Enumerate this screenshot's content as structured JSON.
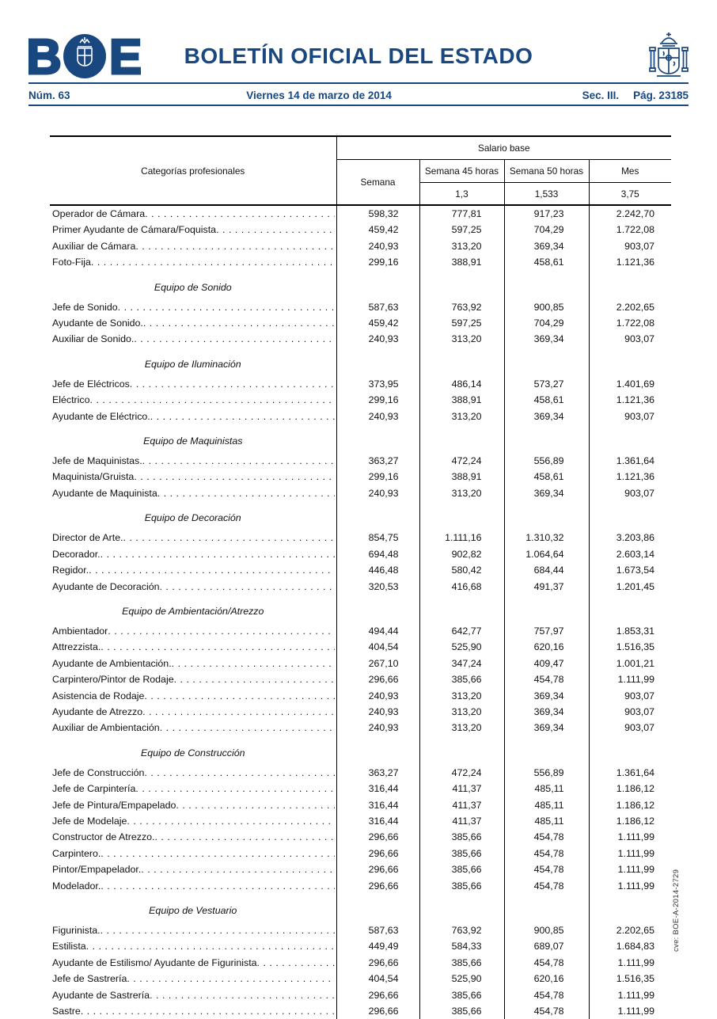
{
  "masthead": {
    "logo": "BOE",
    "title": "BOLETÍN OFICIAL DEL ESTADO",
    "issue": "Núm. 63",
    "date": "Viernes 14 de marzo de 2014",
    "section": "Sec. III.",
    "page_num": "Pág. 23185"
  },
  "cve": "cve: BOE-A-2014-2729",
  "colors": {
    "brand_blue": "#19477f",
    "text": "#111111",
    "border": "#000000"
  },
  "table": {
    "head": {
      "category": "Categorías profesionales",
      "salary_group": "Salario base",
      "week": "Semana",
      "week45": "Semana 45 horas",
      "week50": "Semana 50 horas",
      "month": "Mes",
      "mult45": "1,3",
      "mult50": "1,533",
      "mult_month": "3,75"
    },
    "sections": [
      {
        "title": null,
        "rows": [
          [
            "Operador de Cámara",
            "598,32",
            "777,81",
            "917,23",
            "2.242,70"
          ],
          [
            "Primer Ayudante de Cámara/Foquista",
            "459,42",
            "597,25",
            "704,29",
            "1.722,08"
          ],
          [
            "Auxiliar de Cámara",
            "240,93",
            "313,20",
            "369,34",
            "903,07"
          ],
          [
            "Foto-Fija",
            "299,16",
            "388,91",
            "458,61",
            "1.121,36"
          ]
        ]
      },
      {
        "title": "Equipo de Sonido",
        "rows": [
          [
            "Jefe de Sonido",
            "587,63",
            "763,92",
            "900,85",
            "2.202,65"
          ],
          [
            "Ayudante de Sonido.",
            "459,42",
            "597,25",
            "704,29",
            "1.722,08"
          ],
          [
            "Auxiliar de Sonido.",
            "240,93",
            "313,20",
            "369,34",
            "903,07"
          ]
        ]
      },
      {
        "title": "Equipo de Iluminación",
        "rows": [
          [
            "Jefe de Eléctricos",
            "373,95",
            "486,14",
            "573,27",
            "1.401,69"
          ],
          [
            "Eléctrico",
            "299,16",
            "388,91",
            "458,61",
            "1.121,36"
          ],
          [
            "Ayudante de Eléctrico.",
            "240,93",
            "313,20",
            "369,34",
            "903,07"
          ]
        ]
      },
      {
        "title": "Equipo de Maquinistas",
        "rows": [
          [
            "Jefe de Maquinistas.",
            "363,27",
            "472,24",
            "556,89",
            "1.361,64"
          ],
          [
            "Maquinista/Gruista",
            "299,16",
            "388,91",
            "458,61",
            "1.121,36"
          ],
          [
            "Ayudante de Maquinista",
            "240,93",
            "313,20",
            "369,34",
            "903,07"
          ]
        ]
      },
      {
        "title": "Equipo de Decoración",
        "rows": [
          [
            "Director de Arte.",
            "854,75",
            "1.111,16",
            "1.310,32",
            "3.203,86"
          ],
          [
            "Decorador.",
            "694,48",
            "902,82",
            "1.064,64",
            "2.603,14"
          ],
          [
            "Regidor.",
            "446,48",
            "580,42",
            "684,44",
            "1.673,54"
          ],
          [
            "Ayudante de Decoración",
            "320,53",
            "416,68",
            "491,37",
            "1.201,45"
          ]
        ]
      },
      {
        "title": "Equipo de Ambientación/Atrezzo",
        "rows": [
          [
            "Ambientador",
            "494,44",
            "642,77",
            "757,97",
            "1.853,31"
          ],
          [
            "Attrezzista.",
            "404,54",
            "525,90",
            "620,16",
            "1.516,35"
          ],
          [
            "Ayudante de Ambientación.",
            "267,10",
            "347,24",
            "409,47",
            "1.001,21"
          ],
          [
            "Carpintero/Pintor de Rodaje",
            "296,66",
            "385,66",
            "454,78",
            "1.111,99"
          ],
          [
            "Asistencia de Rodaje",
            "240,93",
            "313,20",
            "369,34",
            "903,07"
          ],
          [
            "Ayudante de Atrezzo",
            "240,93",
            "313,20",
            "369,34",
            "903,07"
          ],
          [
            "Auxiliar de Ambientación",
            "240,93",
            "313,20",
            "369,34",
            "903,07"
          ]
        ]
      },
      {
        "title": "Equipo de Construcción",
        "rows": [
          [
            "Jefe de Construcción",
            "363,27",
            "472,24",
            "556,89",
            "1.361,64"
          ],
          [
            "Jefe de Carpintería",
            "316,44",
            "411,37",
            "485,11",
            "1.186,12"
          ],
          [
            "Jefe de Pintura/Empapelado",
            "316,44",
            "411,37",
            "485,11",
            "1.186,12"
          ],
          [
            "Jefe de Modelaje",
            "316,44",
            "411,37",
            "485,11",
            "1.186,12"
          ],
          [
            "Constructor de Atrezzo.",
            "296,66",
            "385,66",
            "454,78",
            "1.111,99"
          ],
          [
            "Carpintero.",
            "296,66",
            "385,66",
            "454,78",
            "1.111,99"
          ],
          [
            "Pintor/Empapelador.",
            "296,66",
            "385,66",
            "454,78",
            "1.111,99"
          ],
          [
            "Modelador.",
            "296,66",
            "385,66",
            "454,78",
            "1.111,99"
          ]
        ]
      },
      {
        "title": "Equipo de Vestuario",
        "rows": [
          [
            "Figurinista.",
            "587,63",
            "763,92",
            "900,85",
            "2.202,65"
          ],
          [
            "Estilista",
            "449,49",
            "584,33",
            "689,07",
            "1.684,83"
          ],
          [
            "Ayudante de Estilismo/ Ayudante de Figurinista",
            "296,66",
            "385,66",
            "454,78",
            "1.111,99"
          ],
          [
            "Jefe de Sastrería",
            "404,54",
            "525,90",
            "620,16",
            "1.516,35"
          ],
          [
            "Ayudante de Sastrería",
            "296,66",
            "385,66",
            "454,78",
            "1.111,99"
          ],
          [
            "Sastre",
            "296,66",
            "385,66",
            "454,78",
            "1.111,99"
          ]
        ]
      }
    ]
  }
}
